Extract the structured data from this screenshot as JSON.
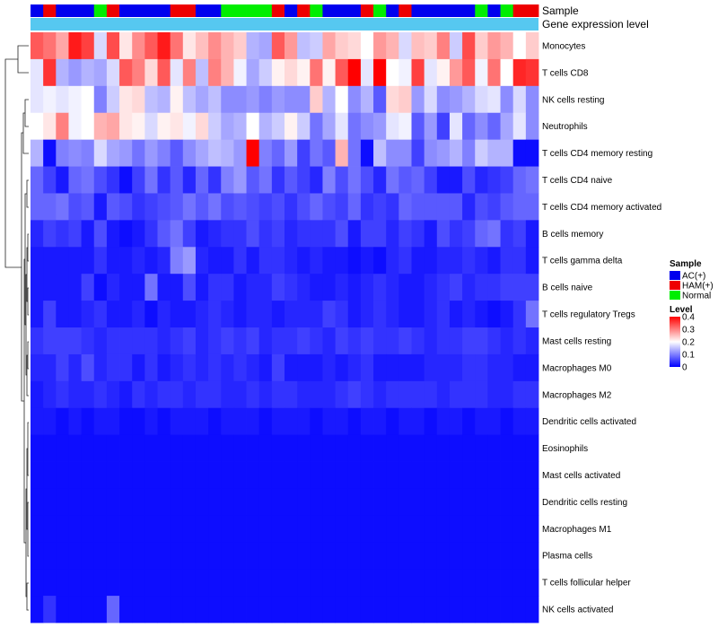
{
  "chart_data": {
    "type": "heatmap",
    "annotation_labels": {
      "sample": "Sample",
      "gene_expression": "Gene expression level"
    },
    "sample_groups": [
      "AC(+)",
      "HAM(+)",
      "AC(+)",
      "AC(+)",
      "AC(+)",
      "Normal",
      "HAM(+)",
      "AC(+)",
      "AC(+)",
      "AC(+)",
      "AC(+)",
      "HAM(+)",
      "HAM(+)",
      "AC(+)",
      "AC(+)",
      "Normal",
      "Normal",
      "Normal",
      "Normal",
      "HAM(+)",
      "AC(+)",
      "HAM(+)",
      "Normal",
      "AC(+)",
      "AC(+)",
      "AC(+)",
      "HAM(+)",
      "Normal",
      "AC(+)",
      "HAM(+)",
      "AC(+)",
      "AC(+)",
      "AC(+)",
      "AC(+)",
      "AC(+)",
      "Normal",
      "AC(+)",
      "Normal",
      "HAM(+)",
      "HAM(+)"
    ],
    "rows": [
      "Monocytes",
      "T cells CD8",
      "NK cells resting",
      "Neutrophils",
      "T cells CD4 memory resting",
      "T cells CD4 naive",
      "T cells CD4 memory activated",
      "B cells memory",
      "T cells gamma delta",
      "B cells naive",
      "T cells regulatory  Tregs",
      "Mast cells resting",
      "Macrophages M0",
      "Macrophages M2",
      "Dendritic cells activated",
      "Eosinophils",
      "Mast cells activated",
      "Dendritic cells resting",
      "Macrophages M1",
      "Plasma cells",
      "T cells follicular helper",
      "NK cells activated"
    ],
    "values": [
      [
        0.33,
        0.31,
        0.27,
        0.38,
        0.35,
        0.17,
        0.34,
        0.22,
        0.29,
        0.33,
        0.38,
        0.31,
        0.22,
        0.25,
        0.29,
        0.26,
        0.24,
        0.14,
        0.13,
        0.33,
        0.28,
        0.15,
        0.16,
        0.27,
        0.24,
        0.23,
        0.2,
        0.28,
        0.26,
        0.17,
        0.25,
        0.24,
        0.3,
        0.16,
        0.34,
        0.24,
        0.28,
        0.26,
        0.2,
        0.24
      ],
      [
        0.18,
        0.36,
        0.14,
        0.12,
        0.14,
        0.13,
        0.17,
        0.33,
        0.3,
        0.23,
        0.33,
        0.18,
        0.3,
        0.15,
        0.3,
        0.26,
        0.19,
        0.13,
        0.16,
        0.21,
        0.23,
        0.21,
        0.31,
        0.21,
        0.33,
        0.42,
        0.18,
        0.4,
        0.2,
        0.19,
        0.35,
        0.18,
        0.21,
        0.28,
        0.33,
        0.19,
        0.31,
        0.2,
        0.37,
        0.36
      ],
      [
        0.18,
        0.19,
        0.18,
        0.19,
        0.2,
        0.1,
        0.16,
        0.22,
        0.23,
        0.15,
        0.14,
        0.21,
        0.15,
        0.13,
        0.15,
        0.11,
        0.11,
        0.12,
        0.1,
        0.12,
        0.11,
        0.11,
        0.24,
        0.14,
        0.2,
        0.11,
        0.14,
        0.07,
        0.23,
        0.24,
        0.12,
        0.17,
        0.11,
        0.12,
        0.14,
        0.17,
        0.18,
        0.11,
        0.17,
        0.11
      ],
      [
        0.2,
        0.22,
        0.3,
        0.19,
        0.2,
        0.26,
        0.27,
        0.22,
        0.21,
        0.17,
        0.21,
        0.22,
        0.19,
        0.23,
        0.16,
        0.13,
        0.14,
        0.2,
        0.14,
        0.16,
        0.21,
        0.16,
        0.09,
        0.13,
        0.18,
        0.09,
        0.11,
        0.12,
        0.18,
        0.19,
        0.07,
        0.12,
        0.05,
        0.18,
        0.08,
        0.11,
        0.08,
        0.13,
        0.18,
        0.11
      ],
      [
        0.14,
        0.01,
        0.1,
        0.11,
        0.1,
        0.17,
        0.13,
        0.12,
        0.09,
        0.12,
        0.1,
        0.07,
        0.11,
        0.13,
        0.15,
        0.14,
        0.12,
        0.4,
        0.1,
        0.08,
        0.12,
        0.05,
        0.09,
        0.07,
        0.26,
        0.09,
        0.01,
        0.15,
        0.11,
        0.11,
        0.05,
        0.11,
        0.12,
        0.14,
        0.1,
        0.16,
        0.14,
        0.14,
        0.01,
        0.01
      ],
      [
        0.08,
        0.05,
        0.02,
        0.08,
        0.09,
        0.06,
        0.04,
        0.01,
        0.05,
        0.09,
        0.04,
        0.07,
        0.03,
        0.08,
        0.04,
        0.1,
        0.12,
        0.07,
        0.09,
        0.04,
        0.07,
        0.05,
        0.03,
        0.1,
        0.06,
        0.09,
        0.06,
        0.03,
        0.09,
        0.07,
        0.08,
        0.05,
        0.02,
        0.02,
        0.06,
        0.03,
        0.04,
        0.05,
        0.08,
        0.09
      ],
      [
        0.08,
        0.08,
        0.09,
        0.06,
        0.07,
        0.02,
        0.07,
        0.06,
        0.04,
        0.05,
        0.06,
        0.07,
        0.09,
        0.07,
        0.09,
        0.06,
        0.07,
        0.06,
        0.05,
        0.06,
        0.04,
        0.06,
        0.08,
        0.06,
        0.05,
        0.08,
        0.04,
        0.05,
        0.04,
        0.08,
        0.07,
        0.07,
        0.07,
        0.07,
        0.03,
        0.06,
        0.05,
        0.07,
        0.08,
        0.08
      ],
      [
        0.03,
        0.05,
        0.04,
        0.05,
        0.02,
        0.06,
        0.02,
        0.01,
        0.02,
        0.04,
        0.07,
        0.09,
        0.05,
        0.02,
        0.03,
        0.04,
        0.04,
        0.06,
        0.04,
        0.05,
        0.03,
        0.04,
        0.04,
        0.04,
        0.06,
        0.02,
        0.05,
        0.05,
        0.03,
        0.05,
        0.04,
        0.02,
        0.06,
        0.04,
        0.05,
        0.08,
        0.09,
        0.04,
        0.05,
        0.02
      ],
      [
        0.02,
        0.02,
        0.02,
        0.02,
        0.02,
        0.04,
        0.02,
        0.02,
        0.03,
        0.02,
        0.03,
        0.1,
        0.12,
        0.03,
        0.02,
        0.02,
        0.04,
        0.02,
        0.04,
        0.04,
        0.03,
        0.02,
        0.03,
        0.02,
        0.02,
        0.01,
        0.02,
        0.01,
        0.03,
        0.04,
        0.02,
        0.02,
        0.03,
        0.03,
        0.04,
        0.03,
        0.02,
        0.04,
        0.04,
        0.02
      ],
      [
        0.02,
        0.02,
        0.02,
        0.02,
        0.05,
        0.01,
        0.03,
        0.02,
        0.02,
        0.09,
        0.02,
        0.02,
        0.06,
        0.02,
        0.04,
        0.04,
        0.02,
        0.03,
        0.03,
        0.05,
        0.04,
        0.03,
        0.02,
        0.02,
        0.03,
        0.02,
        0.03,
        0.04,
        0.03,
        0.02,
        0.02,
        0.03,
        0.04,
        0.05,
        0.03,
        0.04,
        0.04,
        0.05,
        0.05,
        0.05
      ],
      [
        0.02,
        0.05,
        0.02,
        0.02,
        0.03,
        0.04,
        0.02,
        0.02,
        0.03,
        0.01,
        0.03,
        0.02,
        0.02,
        0.03,
        0.04,
        0.03,
        0.02,
        0.03,
        0.03,
        0.02,
        0.03,
        0.03,
        0.03,
        0.05,
        0.04,
        0.02,
        0.03,
        0.04,
        0.03,
        0.02,
        0.02,
        0.03,
        0.04,
        0.02,
        0.03,
        0.02,
        0.01,
        0.02,
        0.04,
        0.09
      ],
      [
        0.04,
        0.05,
        0.05,
        0.05,
        0.04,
        0.03,
        0.04,
        0.04,
        0.04,
        0.04,
        0.03,
        0.04,
        0.05,
        0.03,
        0.04,
        0.05,
        0.04,
        0.05,
        0.03,
        0.04,
        0.04,
        0.05,
        0.04,
        0.03,
        0.05,
        0.04,
        0.05,
        0.04,
        0.04,
        0.05,
        0.04,
        0.03,
        0.04,
        0.04,
        0.05,
        0.05,
        0.04,
        0.03,
        0.04,
        0.03
      ],
      [
        0.03,
        0.03,
        0.05,
        0.03,
        0.06,
        0.03,
        0.04,
        0.04,
        0.02,
        0.04,
        0.02,
        0.03,
        0.04,
        0.03,
        0.04,
        0.03,
        0.04,
        0.03,
        0.02,
        0.05,
        0.02,
        0.02,
        0.02,
        0.03,
        0.02,
        0.03,
        0.04,
        0.02,
        0.02,
        0.02,
        0.02,
        0.03,
        0.03,
        0.03,
        0.04,
        0.04,
        0.03,
        0.03,
        0.02,
        0.02
      ],
      [
        0.02,
        0.03,
        0.04,
        0.03,
        0.03,
        0.04,
        0.03,
        0.02,
        0.04,
        0.03,
        0.04,
        0.04,
        0.03,
        0.04,
        0.04,
        0.03,
        0.03,
        0.04,
        0.03,
        0.04,
        0.04,
        0.03,
        0.03,
        0.03,
        0.04,
        0.05,
        0.04,
        0.03,
        0.04,
        0.04,
        0.04,
        0.04,
        0.03,
        0.04,
        0.04,
        0.04,
        0.03,
        0.03,
        0.04,
        0.04
      ],
      [
        0.02,
        0.02,
        0.01,
        0.02,
        0.01,
        0.02,
        0.02,
        0.01,
        0.01,
        0.02,
        0.01,
        0.02,
        0.02,
        0.02,
        0.01,
        0.02,
        0.02,
        0.02,
        0.01,
        0.02,
        0.02,
        0.02,
        0.01,
        0.02,
        0.02,
        0.01,
        0.02,
        0.02,
        0.01,
        0.02,
        0.02,
        0.01,
        0.02,
        0.02,
        0.01,
        0.02,
        0.02,
        0.01,
        0.02,
        0.02
      ],
      [
        0.01,
        0.01,
        0.01,
        0.01,
        0.01,
        0.01,
        0.01,
        0.01,
        0.01,
        0.01,
        0.01,
        0.01,
        0.01,
        0.01,
        0.01,
        0.01,
        0.01,
        0.01,
        0.01,
        0.01,
        0.01,
        0.01,
        0.01,
        0.01,
        0.01,
        0.01,
        0.01,
        0.01,
        0.01,
        0.01,
        0.01,
        0.01,
        0.01,
        0.01,
        0.01,
        0.01,
        0.01,
        0.01,
        0.01,
        0.01
      ],
      [
        0.01,
        0.01,
        0.01,
        0.01,
        0.01,
        0.01,
        0.01,
        0.01,
        0.01,
        0.01,
        0.01,
        0.01,
        0.01,
        0.01,
        0.01,
        0.01,
        0.01,
        0.01,
        0.01,
        0.01,
        0.01,
        0.01,
        0.01,
        0.01,
        0.01,
        0.01,
        0.01,
        0.01,
        0.01,
        0.01,
        0.01,
        0.01,
        0.01,
        0.01,
        0.01,
        0.01,
        0.01,
        0.01,
        0.01,
        0.01
      ],
      [
        0.01,
        0.01,
        0.01,
        0.01,
        0.01,
        0.01,
        0.01,
        0.01,
        0.01,
        0.01,
        0.01,
        0.01,
        0.01,
        0.01,
        0.01,
        0.01,
        0.01,
        0.01,
        0.01,
        0.01,
        0.01,
        0.01,
        0.01,
        0.01,
        0.01,
        0.01,
        0.01,
        0.01,
        0.01,
        0.01,
        0.01,
        0.01,
        0.01,
        0.01,
        0.01,
        0.01,
        0.01,
        0.01,
        0.01,
        0.01
      ],
      [
        0.01,
        0.01,
        0.01,
        0.01,
        0.01,
        0.01,
        0.01,
        0.01,
        0.01,
        0.01,
        0.01,
        0.01,
        0.01,
        0.01,
        0.01,
        0.01,
        0.01,
        0.01,
        0.01,
        0.01,
        0.01,
        0.01,
        0.01,
        0.01,
        0.01,
        0.01,
        0.01,
        0.01,
        0.01,
        0.01,
        0.01,
        0.01,
        0.01,
        0.01,
        0.01,
        0.01,
        0.01,
        0.01,
        0.01,
        0.01
      ],
      [
        0.01,
        0.01,
        0.01,
        0.01,
        0.01,
        0.01,
        0.01,
        0.01,
        0.01,
        0.01,
        0.01,
        0.01,
        0.01,
        0.01,
        0.01,
        0.01,
        0.01,
        0.01,
        0.01,
        0.01,
        0.01,
        0.01,
        0.01,
        0.01,
        0.01,
        0.01,
        0.01,
        0.01,
        0.01,
        0.01,
        0.01,
        0.01,
        0.01,
        0.01,
        0.01,
        0.01,
        0.01,
        0.01,
        0.01,
        0.01
      ],
      [
        0.01,
        0.01,
        0.01,
        0.01,
        0.01,
        0.01,
        0.01,
        0.01,
        0.01,
        0.01,
        0.01,
        0.01,
        0.01,
        0.01,
        0.01,
        0.01,
        0.01,
        0.01,
        0.01,
        0.01,
        0.01,
        0.01,
        0.01,
        0.01,
        0.01,
        0.01,
        0.01,
        0.01,
        0.01,
        0.01,
        0.01,
        0.01,
        0.01,
        0.01,
        0.01,
        0.01,
        0.01,
        0.01,
        0.01,
        0.01
      ],
      [
        0.01,
        0.04,
        0.01,
        0.01,
        0.01,
        0.01,
        0.08,
        0.01,
        0.01,
        0.01,
        0.01,
        0.01,
        0.01,
        0.01,
        0.01,
        0.01,
        0.01,
        0.01,
        0.01,
        0.01,
        0.01,
        0.01,
        0.01,
        0.01,
        0.01,
        0.01,
        0.01,
        0.01,
        0.01,
        0.01,
        0.01,
        0.01,
        0.01,
        0.01,
        0.01,
        0.01,
        0.01,
        0.01,
        0.01,
        0.01
      ]
    ],
    "color_scale": {
      "min": 0,
      "mid": 0.2,
      "max": 0.4,
      "low_color": "#0000ff",
      "mid_color": "#ffffff",
      "high_color": "#ff0000"
    },
    "gene_expression_color": "#56c8f0",
    "legend": {
      "sample_title": "Sample",
      "sample_entries": [
        {
          "label": "AC(+)",
          "color": "#0000ee"
        },
        {
          "label": "HAM(+)",
          "color": "#ee0000"
        },
        {
          "label": "Normal",
          "color": "#00ee00"
        }
      ],
      "level_title": "Level",
      "level_ticks": [
        {
          "label": "0.4",
          "value": 0.4
        },
        {
          "label": "0.3",
          "value": 0.3
        },
        {
          "label": "0.2",
          "value": 0.2
        },
        {
          "label": "0.1",
          "value": 0.1
        },
        {
          "label": "0",
          "value": 0
        }
      ]
    }
  }
}
